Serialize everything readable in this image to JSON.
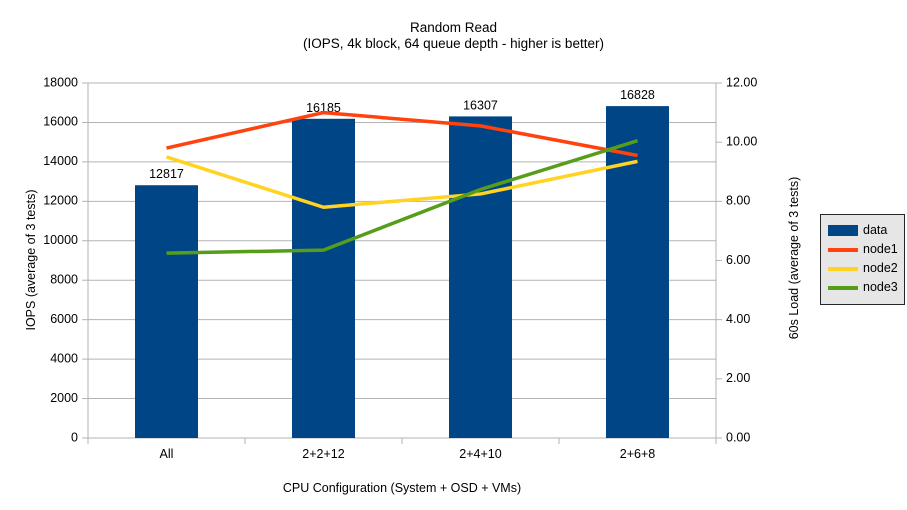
{
  "title": "Random Read",
  "subtitle": "(IOPS, 4k block, 64 queue depth - higher is better)",
  "chart_data": {
    "type": "bar",
    "subtype": "combo-bar-line-two-axes",
    "categories": [
      "All",
      "2+2+12",
      "2+4+10",
      "2+6+8"
    ],
    "bar_series": {
      "name": "data",
      "axis": "left",
      "values": [
        12817,
        16185,
        16307,
        16828
      ],
      "data_labels": [
        "12817",
        "16185",
        "16307",
        "16828"
      ],
      "color": "#004586"
    },
    "line_series": [
      {
        "name": "node1",
        "axis": "right",
        "color": "#FF420E",
        "values": [
          9.8,
          11.0,
          10.55,
          9.55
        ]
      },
      {
        "name": "node2",
        "axis": "right",
        "color": "#FFD320",
        "values": [
          9.5,
          7.8,
          8.25,
          9.35
        ]
      },
      {
        "name": "node3",
        "axis": "right",
        "color": "#579D1C",
        "values": [
          6.25,
          6.35,
          8.4,
          10.05
        ]
      }
    ],
    "left_axis": {
      "title": "IOPS (average of 3 tests)",
      "min": 0,
      "max": 18000,
      "step": 2000,
      "decimals": 0
    },
    "right_axis": {
      "title": "60s Load (average of 3 tests)",
      "min": 0,
      "max": 12,
      "step": 2,
      "decimals": 2
    },
    "x_axis": {
      "title": "CPU Configuration (System + OSD + VMs)"
    },
    "legend": {
      "position": "right",
      "entries": [
        "data",
        "node1",
        "node2",
        "node3"
      ]
    },
    "grid": "horizontal-only",
    "colors": {
      "grid": "#b3b3b3",
      "axis": "#b3b3b3",
      "text": "#000000",
      "background": "#ffffff",
      "legend_fill": "#e6e6e6",
      "legend_border": "#262626"
    }
  }
}
